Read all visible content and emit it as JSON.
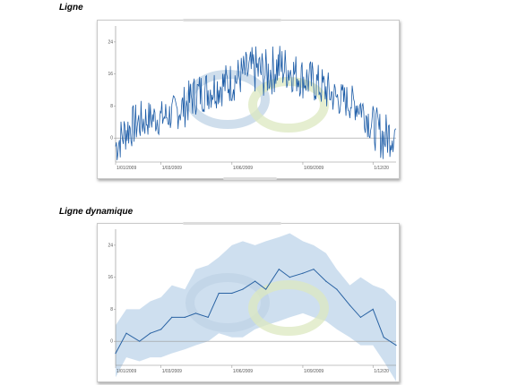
{
  "headings": {
    "line": "Ligne",
    "dynamic_line": "Ligne dynamique"
  },
  "chart_data": [
    {
      "type": "line",
      "title": "Ligne",
      "ylim": [
        -6,
        28
      ],
      "y_ticks": [
        "24",
        "16",
        "8",
        "0"
      ],
      "y_tick_values": [
        24,
        16,
        8,
        0
      ],
      "x_ticks": [
        "1/01/2009",
        "1/03/2009",
        "1/06/2009",
        "1/09/2009",
        "1/12/20"
      ],
      "x_tick_dates": [
        "2009-01-01",
        "2009-03-01",
        "2009-06-01",
        "2009-09-01",
        "2009-12-01"
      ],
      "x_range": [
        "2009-01-01",
        "2009-12-31"
      ],
      "series_color": "#1f5ea8",
      "series": [
        {
          "x": [
            "2009-01-01",
            "2009-01-15",
            "2009-02-01",
            "2009-02-15",
            "2009-03-01",
            "2009-03-15",
            "2009-04-01",
            "2009-04-15",
            "2009-05-01",
            "2009-05-15",
            "2009-06-01",
            "2009-06-15",
            "2009-07-01",
            "2009-07-15",
            "2009-08-01",
            "2009-08-15",
            "2009-09-01",
            "2009-09-15",
            "2009-10-01",
            "2009-10-15",
            "2009-11-01",
            "2009-11-15",
            "2009-12-01",
            "2009-12-15",
            "2009-12-31"
          ],
          "values": [
            -2,
            2,
            4,
            5,
            5,
            6,
            8,
            11,
            12,
            13,
            14,
            16,
            17,
            16,
            18,
            17,
            15,
            14,
            12,
            10,
            9,
            8,
            3,
            0,
            2
          ],
          "spread": [
            6,
            6,
            6,
            5,
            5,
            5,
            6,
            6,
            6,
            6,
            6,
            6,
            7,
            7,
            7,
            6,
            6,
            6,
            6,
            5,
            5,
            5,
            6,
            7,
            6
          ]
        }
      ],
      "watermark_colors": [
        "#bfd3e6",
        "#dce8c0"
      ]
    },
    {
      "type": "area",
      "title": "Ligne dynamique",
      "ylim": [
        -6,
        28
      ],
      "y_ticks": [
        "24",
        "16",
        "8",
        "0"
      ],
      "y_tick_values": [
        24,
        16,
        8,
        0
      ],
      "x_ticks": [
        "1/01/2009",
        "1/03/2009",
        "1/06/2009",
        "1/09/2009",
        "1/12/20"
      ],
      "x_tick_dates": [
        "2009-01-01",
        "2009-03-01",
        "2009-06-01",
        "2009-09-01",
        "2009-12-01"
      ],
      "x_range": [
        "2009-01-01",
        "2009-12-31"
      ],
      "series_color": "#2a63a3",
      "band_color": "#c6d9ec",
      "series": [
        {
          "x": [
            "2009-01-01",
            "2009-01-15",
            "2009-02-01",
            "2009-02-15",
            "2009-03-01",
            "2009-03-15",
            "2009-04-01",
            "2009-04-15",
            "2009-05-01",
            "2009-05-15",
            "2009-06-01",
            "2009-06-15",
            "2009-07-01",
            "2009-07-15",
            "2009-08-01",
            "2009-08-15",
            "2009-09-01",
            "2009-09-15",
            "2009-10-01",
            "2009-10-15",
            "2009-11-01",
            "2009-11-15",
            "2009-12-01",
            "2009-12-15",
            "2009-12-31"
          ],
          "values": [
            -3,
            2,
            0,
            2,
            3,
            6,
            6,
            7,
            6,
            12,
            12,
            13,
            15,
            13,
            18,
            16,
            17,
            18,
            15,
            13,
            9,
            6,
            8,
            1,
            -1
          ],
          "upper": [
            4,
            8,
            8,
            10,
            11,
            14,
            13,
            18,
            19,
            21,
            24,
            25,
            24,
            25,
            26,
            27,
            25,
            24,
            22,
            18,
            14,
            16,
            14,
            13,
            10
          ],
          "lower": [
            -9,
            -4,
            -5,
            -4,
            -4,
            -3,
            -2,
            -1,
            0,
            2,
            1,
            1,
            3,
            4,
            5,
            6,
            7,
            6,
            5,
            3,
            1,
            -1,
            -1,
            -5,
            -10
          ]
        }
      ],
      "watermark_colors": [
        "#bfd3e6",
        "#dce8c0"
      ]
    }
  ]
}
